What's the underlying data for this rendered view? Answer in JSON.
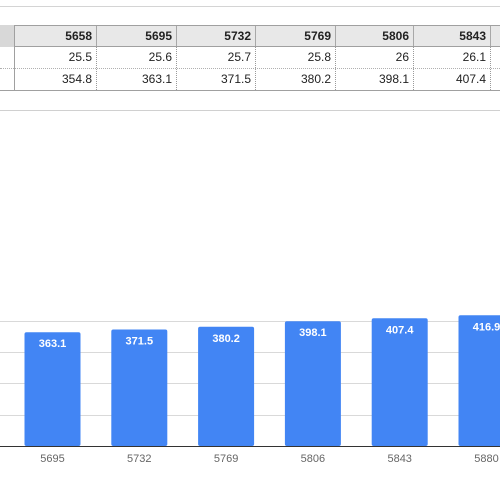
{
  "sheet": {
    "header": [
      "5658",
      "5695",
      "5732",
      "5769",
      "5806",
      "5843"
    ],
    "row1": [
      "25.5",
      "25.6",
      "25.7",
      "25.8",
      "26",
      "26.1"
    ],
    "row2": [
      "354.8",
      "363.1",
      "371.5",
      "380.2",
      "398.1",
      "407.4"
    ]
  },
  "chart_data": {
    "type": "bar",
    "categories": [
      "5695",
      "5732",
      "5769",
      "5806",
      "5843",
      "5880"
    ],
    "values": [
      363.1,
      371.5,
      380.2,
      398.1,
      407.4,
      416.9
    ],
    "data_labels": [
      "363.1",
      "371.5",
      "380.2",
      "398.1",
      "407.4",
      "416.9"
    ],
    "bar_color": "#4285f4",
    "gridlines": true,
    "ylim": [
      0,
      500
    ]
  }
}
